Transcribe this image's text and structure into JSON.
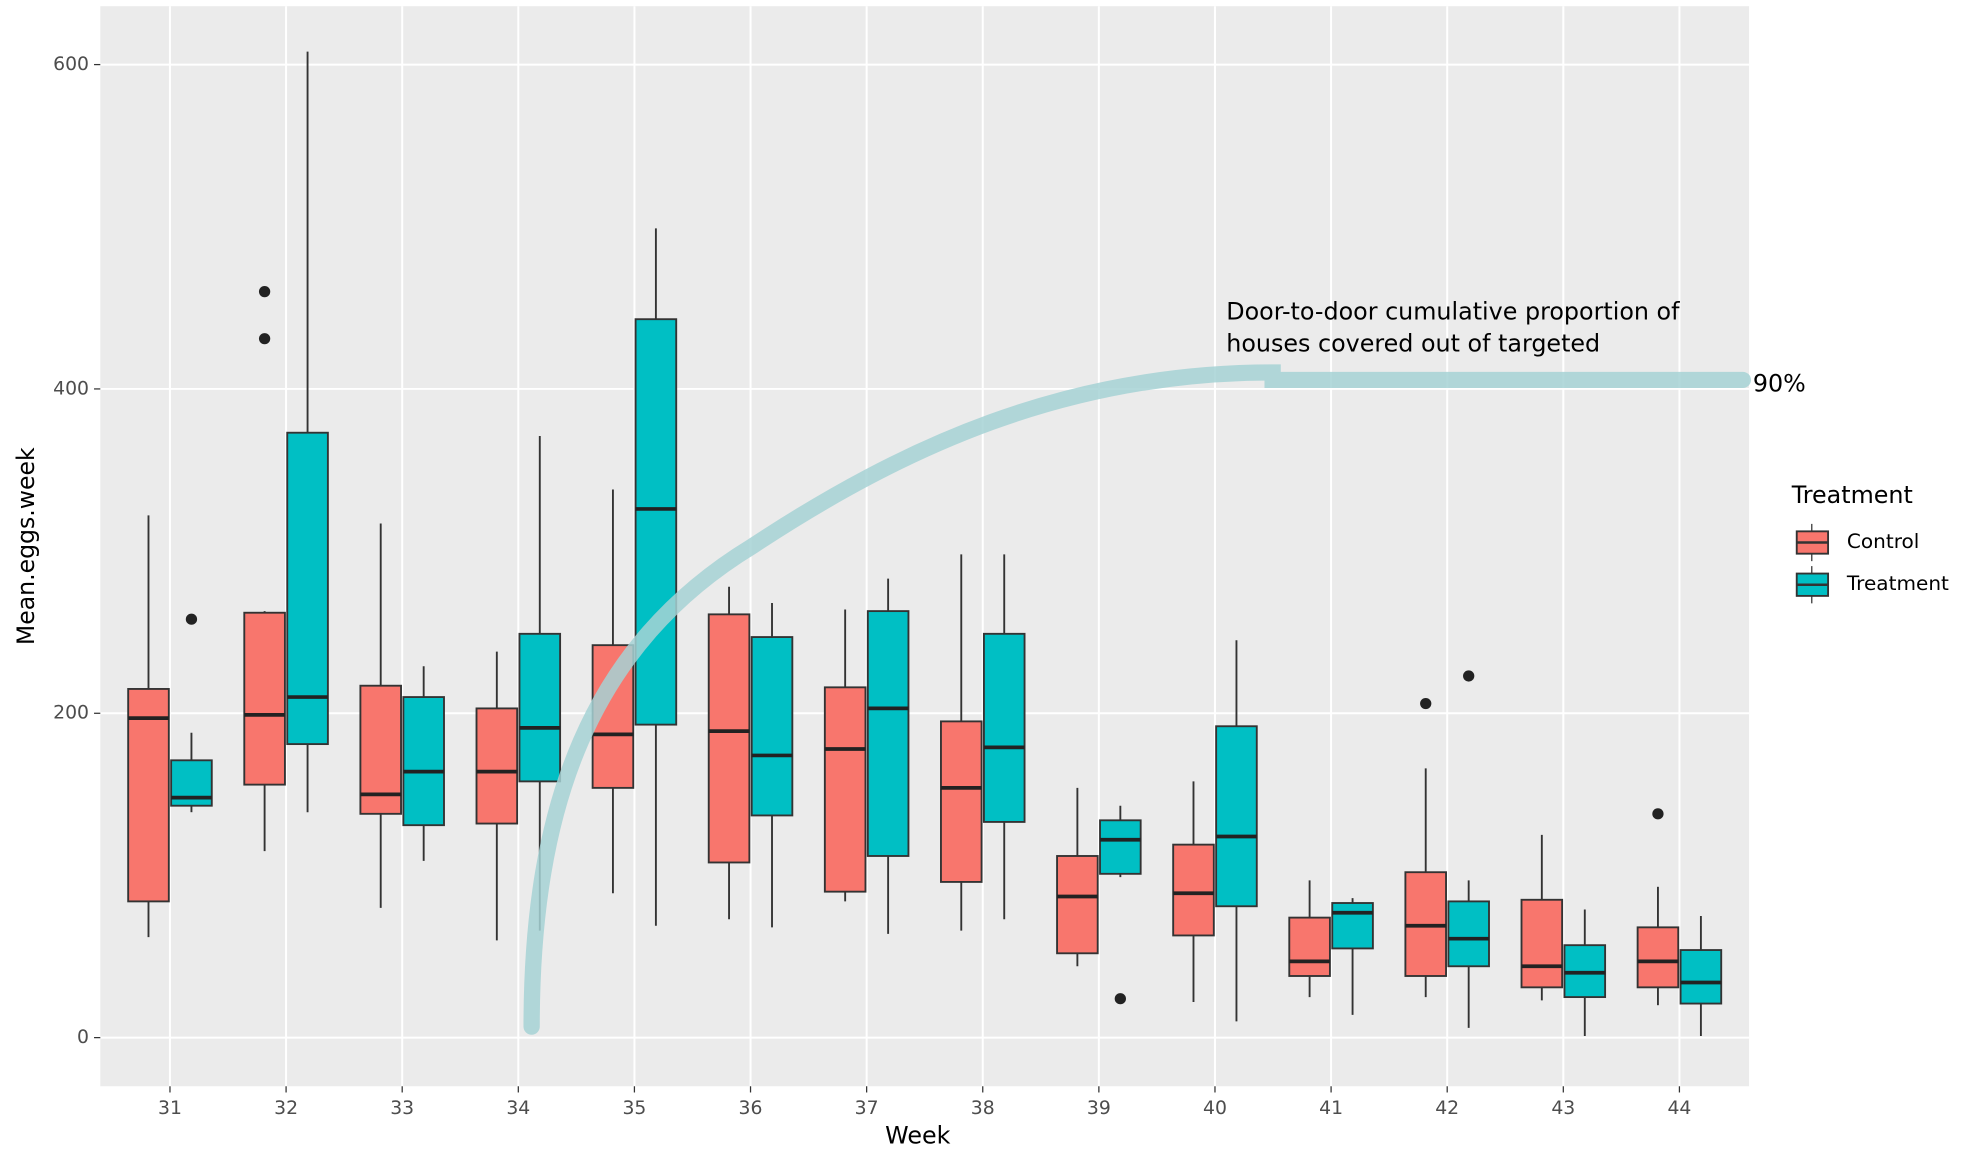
{
  "chart_data": {
    "type": "boxplot",
    "categories": [
      "31",
      "32",
      "33",
      "34",
      "35",
      "36",
      "37",
      "38",
      "39",
      "40",
      "41",
      "42",
      "43",
      "44"
    ],
    "series": [
      {
        "name": "Control",
        "color": "#f8766d",
        "min": [
          62,
          115,
          80,
          60,
          89,
          73,
          84,
          66,
          44,
          22,
          25,
          25,
          23,
          20
        ],
        "q1": [
          84,
          156,
          138,
          132,
          154,
          108,
          90,
          96,
          52,
          63,
          38,
          38,
          31,
          31
        ],
        "median": [
          197,
          199,
          150,
          164,
          187,
          189,
          178,
          154,
          87,
          89,
          47,
          69,
          44,
          47
        ],
        "q3": [
          215,
          262,
          217,
          203,
          242,
          261,
          216,
          195,
          112,
          119,
          74,
          102,
          85,
          68
        ],
        "max": [
          322,
          263,
          317,
          238,
          338,
          278,
          264,
          298,
          154,
          158,
          97,
          166,
          125,
          93
        ],
        "outliers": [
          [],
          [
            460,
            431
          ],
          [],
          [],
          [],
          [],
          [],
          [],
          [],
          [],
          [],
          [
            206
          ],
          [],
          [
            138
          ]
        ]
      },
      {
        "name": "Treatment",
        "color": "#00bfc4",
        "min": [
          139,
          139,
          109,
          66,
          69,
          68,
          64,
          73,
          99,
          10,
          14,
          6,
          1,
          1
        ],
        "q1": [
          143,
          181,
          131,
          158,
          193,
          137,
          112,
          133,
          101,
          81,
          55,
          44,
          25,
          21
        ],
        "median": [
          148,
          210,
          164,
          191,
          326,
          174,
          203,
          179,
          122,
          124,
          77,
          61,
          40,
          34
        ],
        "q3": [
          171,
          373,
          210,
          249,
          443,
          247,
          263,
          249,
          134,
          192,
          83,
          84,
          57,
          54
        ],
        "max": [
          188,
          608,
          229,
          371,
          499,
          268,
          283,
          298,
          143,
          245,
          86,
          97,
          79,
          75
        ],
        "outliers": [
          [
            258
          ],
          [],
          [],
          [],
          [],
          [],
          [],
          [],
          [
            24
          ],
          [],
          [],
          [
            223
          ],
          [],
          []
        ]
      }
    ],
    "x_label": "Week",
    "y_label": "Mean.eggs.week",
    "ylim": [
      -30,
      636
    ],
    "yticks": [
      0,
      200,
      400,
      600
    ],
    "grid": true,
    "legend_title": "Treatment",
    "legend_position": "right",
    "annotation": {
      "text_lines": [
        "Door-to-door cumulative proportion of",
        "houses covered out of targeted"
      ],
      "end_label": "90%"
    }
  }
}
